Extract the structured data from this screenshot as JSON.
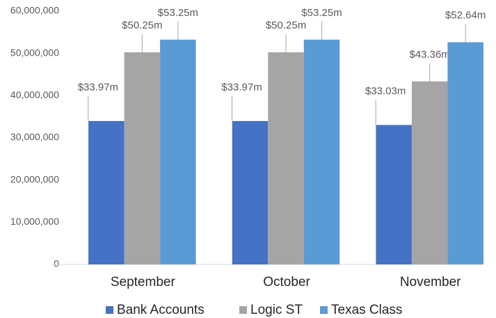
{
  "chart_data": {
    "type": "bar",
    "categories": [
      "September",
      "October",
      "November"
    ],
    "series": [
      {
        "name": "Bank Accounts",
        "color": "#4472c4",
        "values": [
          33970000,
          33970000,
          33030000
        ],
        "value_labels": [
          "$33.97m",
          "$33.97m",
          "$33.03m"
        ]
      },
      {
        "name": "Logic ST",
        "color": "#a5a5a5",
        "values": [
          50250000,
          50250000,
          43360000
        ],
        "value_labels": [
          "$50.25m",
          "$50.25m",
          "$43.36m"
        ]
      },
      {
        "name": "Texas Class",
        "color": "#5b9bd5",
        "values": [
          53250000,
          53250000,
          52640000
        ],
        "value_labels": [
          "$53.25m",
          "$53.25m",
          "$52.64m"
        ]
      }
    ],
    "ylim": [
      0,
      60000000
    ],
    "yticks": [
      0,
      {
        "value": 10000000,
        "label": "10,000,000"
      },
      {
        "value": 20000000,
        "label": "20,000,000"
      },
      {
        "value": 30000000,
        "label": "30,000,000"
      },
      {
        "value": 40000000,
        "label": "40,000,000"
      },
      {
        "value": 50000000,
        "label": "50,000,000"
      },
      {
        "value": 60000000,
        "label": "60,000,000"
      }
    ],
    "grid": false,
    "legend": "bottom"
  }
}
